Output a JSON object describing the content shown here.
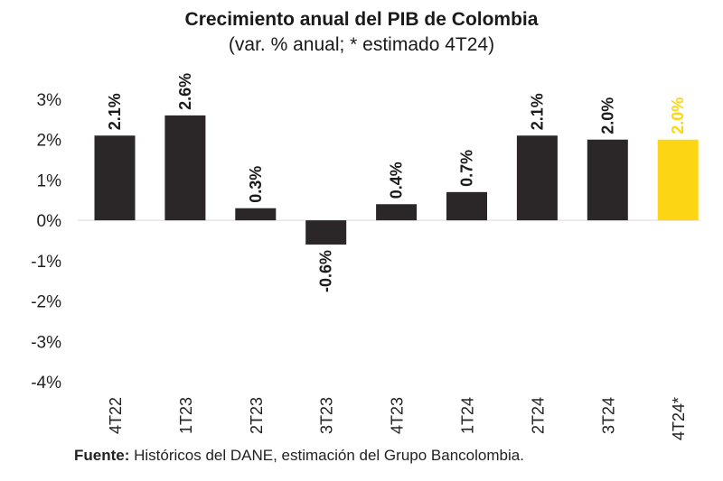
{
  "title": "Crecimiento anual del PIB de Colombia",
  "subtitle": "(var. % anual; * estimado 4T24)",
  "source": {
    "label": "Fuente:",
    "text": " Históricos del DANE, estimación del Grupo Bancolombia."
  },
  "colors": {
    "bar": "#2b2627",
    "highlight": "#fcd615",
    "text": "#222222"
  },
  "chart_data": {
    "type": "bar",
    "title": "Crecimiento anual del PIB de Colombia",
    "subtitle": "(var. % anual; * estimado 4T24)",
    "categories": [
      "4T22",
      "1T23",
      "2T23",
      "3T23",
      "4T23",
      "1T24",
      "2T24",
      "3T24",
      "4T24*"
    ],
    "values": [
      2.1,
      2.6,
      0.3,
      -0.6,
      0.4,
      0.7,
      2.1,
      2.0,
      2.0
    ],
    "data_labels": [
      "2.1%",
      "2.6%",
      "0.3%",
      "-0.6%",
      "0.4%",
      "0.7%",
      "2.1%",
      "2.0%",
      "2.0%"
    ],
    "highlight_index": 8,
    "ylim": [
      -4,
      3
    ],
    "yticks": [
      3,
      2,
      1,
      0,
      -1,
      -2,
      -3,
      -4
    ],
    "ytick_labels": [
      "3%",
      "2%",
      "1%",
      "0%",
      "-1%",
      "-2%",
      "-3%",
      "-4%"
    ],
    "xlabel": "",
    "ylabel": "",
    "grid": false,
    "legend": "none"
  }
}
